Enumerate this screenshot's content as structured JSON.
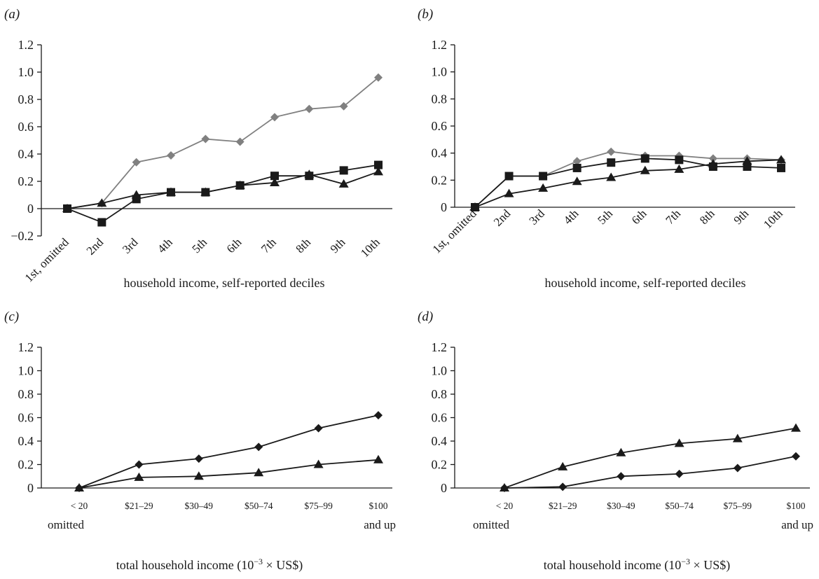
{
  "colors": {
    "black": "#1a1a1a",
    "grey": "#808080"
  },
  "chart_data": [
    {
      "id": "a",
      "type": "line",
      "panel_label": "(a)",
      "categories": [
        "1st, omitted",
        "2nd",
        "3rd",
        "4th",
        "5th",
        "6th",
        "7th",
        "8th",
        "9th",
        "10th"
      ],
      "xlabel": "household income, self-reported deciles",
      "ylim": [
        -0.2,
        1.2
      ],
      "yticks": [
        -0.2,
        0,
        0.2,
        0.4,
        0.6,
        0.8,
        1.0,
        1.2
      ],
      "ytick_labels": [
        "−0.2",
        "0",
        "0.2",
        "0.4",
        "0.6",
        "0.8",
        "1.0",
        "1.2"
      ],
      "grid": false,
      "series": [
        {
          "marker": "diamond",
          "color": "#808080",
          "values": [
            0,
            0.04,
            0.34,
            0.39,
            0.51,
            0.49,
            0.67,
            0.73,
            0.75,
            0.96
          ]
        },
        {
          "marker": "square",
          "color": "#1a1a1a",
          "values": [
            0,
            -0.1,
            0.07,
            0.12,
            0.12,
            0.17,
            0.24,
            0.24,
            0.28,
            0.32
          ]
        },
        {
          "marker": "triangle",
          "color": "#1a1a1a",
          "values": [
            0,
            0.04,
            0.1,
            0.12,
            0.12,
            0.17,
            0.19,
            0.25,
            0.18,
            0.27
          ]
        }
      ]
    },
    {
      "id": "b",
      "type": "line",
      "panel_label": "(b)",
      "categories": [
        "1st, omitted",
        "2nd",
        "3rd",
        "4th",
        "5th",
        "6th",
        "7th",
        "8th",
        "9th",
        "10th"
      ],
      "xlabel": "household income, self-reported deciles",
      "ylim": [
        0,
        1.2
      ],
      "yticks": [
        0,
        0.2,
        0.4,
        0.6,
        0.8,
        1.0,
        1.2
      ],
      "ytick_labels": [
        "0",
        "0.2",
        "0.4",
        "0.6",
        "0.8",
        "1.0",
        "1.2"
      ],
      "grid": false,
      "series": [
        {
          "marker": "diamond",
          "color": "#808080",
          "values": [
            0,
            0.23,
            0.23,
            0.34,
            0.41,
            0.38,
            0.38,
            0.36,
            0.36,
            0.35
          ]
        },
        {
          "marker": "square",
          "color": "#1a1a1a",
          "values": [
            0,
            0.23,
            0.23,
            0.29,
            0.33,
            0.36,
            0.35,
            0.3,
            0.3,
            0.29
          ]
        },
        {
          "marker": "triangle",
          "color": "#1a1a1a",
          "values": [
            0,
            0.1,
            0.14,
            0.19,
            0.22,
            0.27,
            0.28,
            0.32,
            0.34,
            0.35
          ]
        }
      ]
    },
    {
      "id": "c",
      "type": "line",
      "panel_label": "(c)",
      "categories": [
        "< 20",
        "$21–29",
        "$30–49",
        "$50–74",
        "$75–99",
        "$100"
      ],
      "category_sublabels": [
        "omitted",
        "",
        "",
        "",
        "",
        "and up"
      ],
      "xlabel": "total household income (10−3 × US$)",
      "xlabel_parts": [
        "total household income (10",
        "−3",
        " × US$)"
      ],
      "ylim": [
        0,
        1.2
      ],
      "yticks": [
        0,
        0.2,
        0.4,
        0.6,
        0.8,
        1.0,
        1.2
      ],
      "ytick_labels": [
        "0",
        "0.2",
        "0.4",
        "0.6",
        "0.8",
        "1.0",
        "1.2"
      ],
      "grid": false,
      "series": [
        {
          "marker": "diamond",
          "color": "#1a1a1a",
          "values": [
            0,
            0.2,
            0.25,
            0.35,
            0.51,
            0.62
          ]
        },
        {
          "marker": "triangle",
          "color": "#1a1a1a",
          "values": [
            0,
            0.09,
            0.1,
            0.13,
            0.2,
            0.24
          ]
        }
      ]
    },
    {
      "id": "d",
      "type": "line",
      "panel_label": "(d)",
      "categories": [
        "< 20",
        "$21–29",
        "$30–49",
        "$50–74",
        "$75–99",
        "$100"
      ],
      "category_sublabels": [
        "omitted",
        "",
        "",
        "",
        "",
        "and up"
      ],
      "xlabel": "total household income (10−3 × US$)",
      "xlabel_parts": [
        "total household income (10",
        "−3",
        " × US$)"
      ],
      "ylim": [
        0,
        1.2
      ],
      "yticks": [
        0,
        0.2,
        0.4,
        0.6,
        0.8,
        1.0,
        1.2
      ],
      "ytick_labels": [
        "0",
        "0.2",
        "0.4",
        "0.6",
        "0.8",
        "1.0",
        "1.2"
      ],
      "grid": false,
      "series": [
        {
          "marker": "triangle",
          "color": "#1a1a1a",
          "values": [
            0,
            0.18,
            0.3,
            0.38,
            0.42,
            0.51
          ]
        },
        {
          "marker": "diamond",
          "color": "#1a1a1a",
          "values": [
            0,
            0.01,
            0.1,
            0.12,
            0.17,
            0.27
          ]
        }
      ]
    }
  ]
}
